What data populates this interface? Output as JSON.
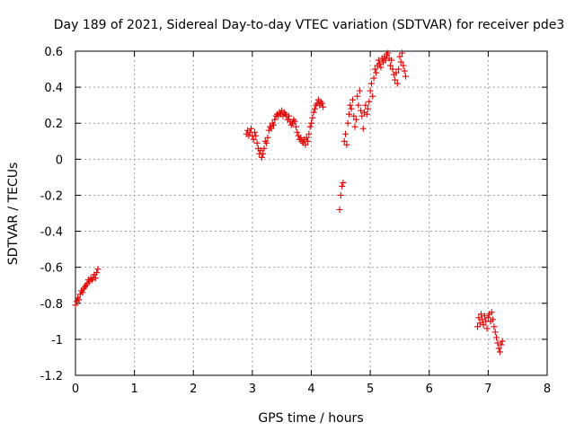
{
  "chart_data": {
    "type": "scatter",
    "title": "Day 189 of 2021, Sidereal Day-to-day VTEC variation (SDTVAR) for receiver pde3",
    "xlabel": "GPS time / hours",
    "ylabel": "SDTVAR / TECUs",
    "xlim": [
      0,
      8
    ],
    "ylim": [
      -1.2,
      0.6
    ],
    "xticks": [
      "0",
      "1",
      "2",
      "3",
      "4",
      "5",
      "6",
      "7",
      "8"
    ],
    "yticks": [
      "0.6",
      "0.4",
      "0.2",
      "0",
      "-0.2",
      "-0.4",
      "-0.6",
      "-0.8",
      "-1",
      "-1.2"
    ],
    "grid": true,
    "marker": "+",
    "color": "#e00000",
    "series": [
      {
        "name": "pde3",
        "points": [
          [
            0.0,
            -0.81
          ],
          [
            0.02,
            -0.79
          ],
          [
            0.04,
            -0.77
          ],
          [
            0.06,
            -0.78
          ],
          [
            0.08,
            -0.75
          ],
          [
            0.1,
            -0.73
          ],
          [
            0.12,
            -0.74
          ],
          [
            0.14,
            -0.72
          ],
          [
            0.16,
            -0.71
          ],
          [
            0.18,
            -0.7
          ],
          [
            0.2,
            -0.69
          ],
          [
            0.22,
            -0.67
          ],
          [
            0.24,
            -0.68
          ],
          [
            0.26,
            -0.66
          ],
          [
            0.28,
            -0.67
          ],
          [
            0.3,
            -0.66
          ],
          [
            0.32,
            -0.64
          ],
          [
            0.34,
            -0.66
          ],
          [
            0.36,
            -0.63
          ],
          [
            0.38,
            -0.61
          ],
          [
            2.9,
            0.14
          ],
          [
            2.92,
            0.16
          ],
          [
            2.94,
            0.13
          ],
          [
            2.96,
            0.15
          ],
          [
            2.98,
            0.17
          ],
          [
            3.0,
            0.13
          ],
          [
            3.02,
            0.11
          ],
          [
            3.04,
            0.15
          ],
          [
            3.06,
            0.13
          ],
          [
            3.08,
            0.09
          ],
          [
            3.1,
            0.06
          ],
          [
            3.12,
            0.03
          ],
          [
            3.14,
            0.05
          ],
          [
            3.16,
            0.01
          ],
          [
            3.18,
            0.03
          ],
          [
            3.2,
            0.06
          ],
          [
            3.22,
            0.1
          ],
          [
            3.24,
            0.09
          ],
          [
            3.26,
            0.12
          ],
          [
            3.28,
            0.16
          ],
          [
            3.3,
            0.18
          ],
          [
            3.32,
            0.17
          ],
          [
            3.34,
            0.2
          ],
          [
            3.36,
            0.19
          ],
          [
            3.38,
            0.22
          ],
          [
            3.4,
            0.24
          ],
          [
            3.42,
            0.25
          ],
          [
            3.44,
            0.24
          ],
          [
            3.46,
            0.26
          ],
          [
            3.48,
            0.25
          ],
          [
            3.5,
            0.27
          ],
          [
            3.52,
            0.24
          ],
          [
            3.54,
            0.26
          ],
          [
            3.56,
            0.25
          ],
          [
            3.58,
            0.24
          ],
          [
            3.6,
            0.22
          ],
          [
            3.62,
            0.24
          ],
          [
            3.64,
            0.21
          ],
          [
            3.66,
            0.19
          ],
          [
            3.68,
            0.2
          ],
          [
            3.7,
            0.22
          ],
          [
            3.72,
            0.21
          ],
          [
            3.74,
            0.18
          ],
          [
            3.76,
            0.15
          ],
          [
            3.78,
            0.13
          ],
          [
            3.8,
            0.11
          ],
          [
            3.82,
            0.12
          ],
          [
            3.84,
            0.1
          ],
          [
            3.86,
            0.09
          ],
          [
            3.88,
            0.11
          ],
          [
            3.9,
            0.08
          ],
          [
            3.92,
            0.12
          ],
          [
            3.94,
            0.1
          ],
          [
            3.96,
            0.14
          ],
          [
            3.98,
            0.18
          ],
          [
            4.0,
            0.2
          ],
          [
            4.02,
            0.23
          ],
          [
            4.04,
            0.26
          ],
          [
            4.06,
            0.28
          ],
          [
            4.08,
            0.3
          ],
          [
            4.1,
            0.31
          ],
          [
            4.12,
            0.33
          ],
          [
            4.14,
            0.3
          ],
          [
            4.16,
            0.32
          ],
          [
            4.18,
            0.31
          ],
          [
            4.2,
            0.29
          ],
          [
            4.48,
            -0.28
          ],
          [
            4.5,
            -0.2
          ],
          [
            4.52,
            -0.15
          ],
          [
            4.54,
            -0.13
          ],
          [
            4.56,
            0.1
          ],
          [
            4.58,
            0.14
          ],
          [
            4.6,
            0.08
          ],
          [
            4.62,
            0.2
          ],
          [
            4.64,
            0.25
          ],
          [
            4.66,
            0.3
          ],
          [
            4.68,
            0.28
          ],
          [
            4.7,
            0.33
          ],
          [
            4.72,
            0.24
          ],
          [
            4.74,
            0.18
          ],
          [
            4.76,
            0.22
          ],
          [
            4.78,
            0.35
          ],
          [
            4.8,
            0.3
          ],
          [
            4.82,
            0.38
          ],
          [
            4.84,
            0.27
          ],
          [
            4.86,
            0.24
          ],
          [
            4.88,
            0.17
          ],
          [
            4.9,
            0.26
          ],
          [
            4.92,
            0.3
          ],
          [
            4.94,
            0.25
          ],
          [
            4.96,
            0.28
          ],
          [
            4.98,
            0.32
          ],
          [
            5.0,
            0.38
          ],
          [
            5.02,
            0.42
          ],
          [
            5.04,
            0.35
          ],
          [
            5.06,
            0.45
          ],
          [
            5.08,
            0.5
          ],
          [
            5.1,
            0.48
          ],
          [
            5.12,
            0.52
          ],
          [
            5.14,
            0.55
          ],
          [
            5.16,
            0.53
          ],
          [
            5.18,
            0.51
          ],
          [
            5.2,
            0.56
          ],
          [
            5.22,
            0.54
          ],
          [
            5.24,
            0.57
          ],
          [
            5.26,
            0.55
          ],
          [
            5.28,
            0.58
          ],
          [
            5.3,
            0.59
          ],
          [
            5.32,
            0.56
          ],
          [
            5.34,
            0.52
          ],
          [
            5.36,
            0.55
          ],
          [
            5.38,
            0.5
          ],
          [
            5.4,
            0.47
          ],
          [
            5.42,
            0.44
          ],
          [
            5.44,
            0.48
          ],
          [
            5.46,
            0.42
          ],
          [
            5.48,
            0.5
          ],
          [
            5.5,
            0.57
          ],
          [
            5.52,
            0.54
          ],
          [
            5.54,
            0.59
          ],
          [
            5.56,
            0.52
          ],
          [
            5.58,
            0.49
          ],
          [
            5.6,
            0.46
          ],
          [
            6.82,
            -0.93
          ],
          [
            6.84,
            -0.88
          ],
          [
            6.86,
            -0.91
          ],
          [
            6.88,
            -0.86
          ],
          [
            6.9,
            -0.89
          ],
          [
            6.92,
            -0.92
          ],
          [
            6.94,
            -0.87
          ],
          [
            6.96,
            -0.9
          ],
          [
            6.98,
            -0.94
          ],
          [
            7.0,
            -0.88
          ],
          [
            7.02,
            -0.86
          ],
          [
            7.04,
            -0.9
          ],
          [
            7.06,
            -0.85
          ],
          [
            7.08,
            -0.89
          ],
          [
            7.1,
            -0.93
          ],
          [
            7.12,
            -0.96
          ],
          [
            7.14,
            -0.99
          ],
          [
            7.16,
            -1.02
          ],
          [
            7.18,
            -1.05
          ],
          [
            7.2,
            -1.07
          ],
          [
            7.22,
            -1.03
          ],
          [
            7.24,
            -1.01
          ]
        ]
      }
    ]
  }
}
